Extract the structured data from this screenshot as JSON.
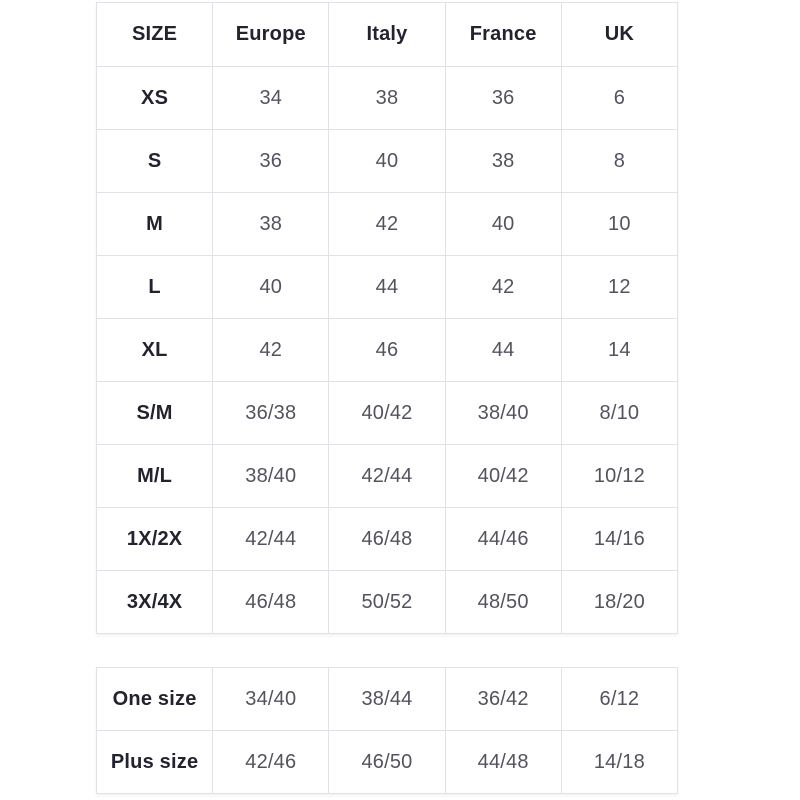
{
  "size_table": {
    "headers": [
      "SIZE",
      "Europe",
      "Italy",
      "France",
      "UK"
    ],
    "rows": [
      [
        "XS",
        "34",
        "38",
        "36",
        "6"
      ],
      [
        "S",
        "36",
        "40",
        "38",
        "8"
      ],
      [
        "M",
        "38",
        "42",
        "40",
        "10"
      ],
      [
        "L",
        "40",
        "44",
        "42",
        "12"
      ],
      [
        "XL",
        "42",
        "46",
        "44",
        "14"
      ],
      [
        "S/M",
        "36/38",
        "40/42",
        "38/40",
        "8/10"
      ],
      [
        "M/L",
        "38/40",
        "42/44",
        "40/42",
        "10/12"
      ],
      [
        "1X/2X",
        "42/44",
        "46/48",
        "44/46",
        "14/16"
      ],
      [
        "3X/4X",
        "46/48",
        "50/52",
        "48/50",
        "18/20"
      ]
    ]
  },
  "special_table": {
    "rows": [
      [
        "One size",
        "34/40",
        "38/44",
        "36/42",
        "6/12"
      ],
      [
        "Plus size",
        "42/46",
        "46/50",
        "44/48",
        "14/18"
      ]
    ]
  },
  "colors": {
    "border": "#e2e2e6",
    "header_text": "#232330",
    "value_text": "#53535f",
    "background": "#ffffff"
  }
}
